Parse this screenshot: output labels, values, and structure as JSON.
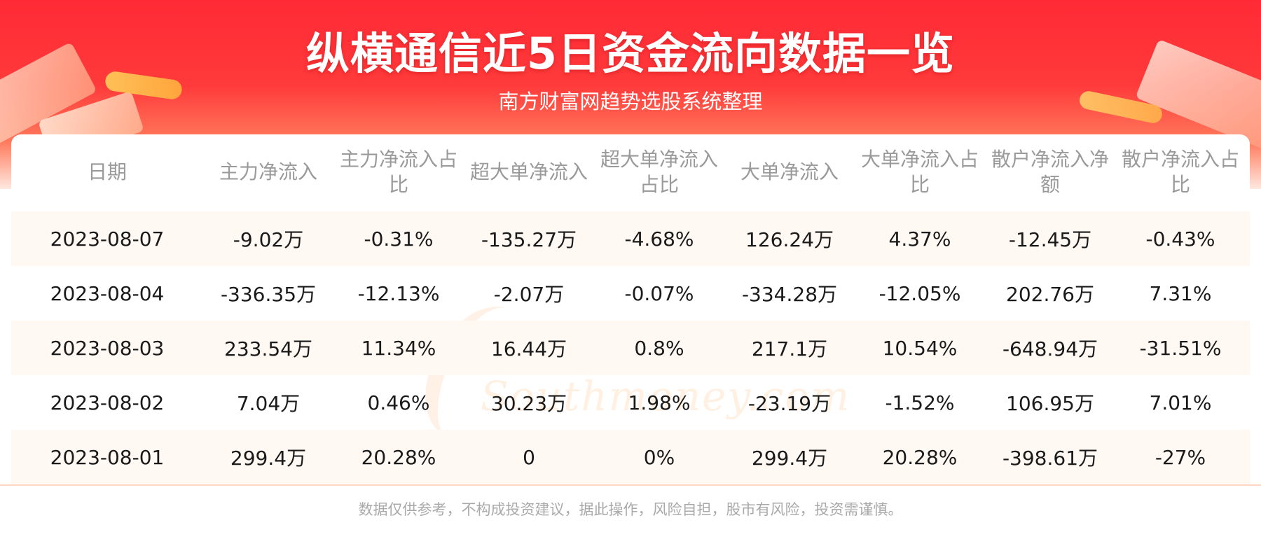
{
  "header": {
    "title": "纵横通信近5日资金流向数据一览",
    "subtitle": "南方财富网趋势选股系统整理"
  },
  "watermark": {
    "cn": "南方财富网",
    "en": "Southmoney.com"
  },
  "table": {
    "columns": [
      "日期",
      "主力净流入",
      "主力净流入占比",
      "超大单净流入",
      "超大单净流入占比",
      "大单净流入",
      "大单净流入占比",
      "散户净流入净额",
      "散户净流入占比"
    ],
    "rows": [
      [
        "2023-08-07",
        "-9.02万",
        "-0.31%",
        "-135.27万",
        "-4.68%",
        "126.24万",
        "4.37%",
        "-12.45万",
        "-0.43%"
      ],
      [
        "2023-08-04",
        "-336.35万",
        "-12.13%",
        "-2.07万",
        "-0.07%",
        "-334.28万",
        "-12.05%",
        "202.76万",
        "7.31%"
      ],
      [
        "2023-08-03",
        "233.54万",
        "11.34%",
        "16.44万",
        "0.8%",
        "217.1万",
        "10.54%",
        "-648.94万",
        "-31.51%"
      ],
      [
        "2023-08-02",
        "7.04万",
        "0.46%",
        "30.23万",
        "1.98%",
        "-23.19万",
        "-1.52%",
        "106.95万",
        "7.01%"
      ],
      [
        "2023-08-01",
        "299.4万",
        "20.28%",
        "0",
        "0%",
        "299.4万",
        "20.28%",
        "-398.61万",
        "-27%"
      ]
    ]
  },
  "footer": {
    "disclaimer": "数据仅供参考，不构成投资建议，据此操作，风险自担，股市有风险，投资需谨慎。"
  },
  "colors": {
    "banner_red": "#ff2a36",
    "row_stripe": "#fff8f3",
    "header_text": "#9a9a9a",
    "body_text": "#1a1a1a"
  }
}
